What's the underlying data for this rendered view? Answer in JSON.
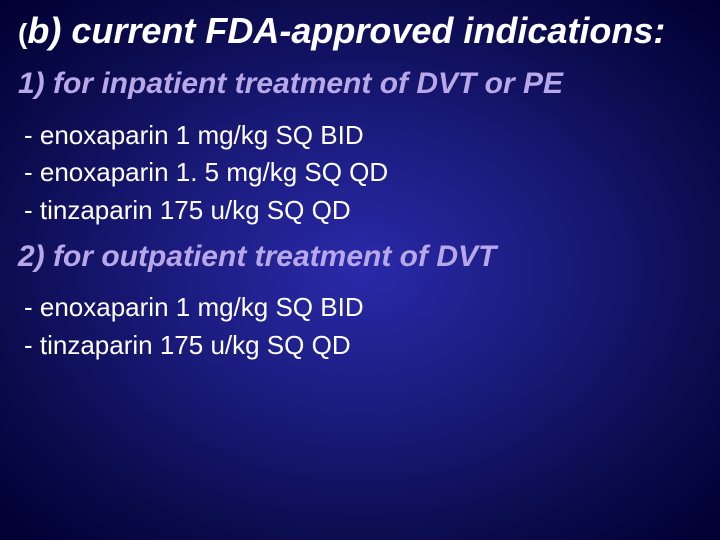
{
  "background": {
    "gradient_center": "#2a2aaa",
    "gradient_mid": "#1a1a7a",
    "gradient_outer": "#0a0a4a",
    "gradient_edge": "#000033"
  },
  "title": {
    "paren": "(",
    "label_part1": "b)",
    "label_part2": " current FDA-approved indications:",
    "color": "#ffffff",
    "fontsize": 36,
    "font_style": "bold italic"
  },
  "sections": [
    {
      "heading": "1) for inpatient treatment of DVT or PE",
      "heading_color": "#b8a8e8",
      "heading_fontsize": 30,
      "items": [
        "- enoxaparin 1 mg/kg SQ BID",
        "- enoxaparin 1. 5 mg/kg SQ QD",
        "- tinzaparin 175 u/kg SQ QD"
      ],
      "item_color": "#ffffff",
      "item_fontsize": 26
    },
    {
      "heading": "2) for outpatient treatment of DVT",
      "heading_color": "#b8a8e8",
      "heading_fontsize": 30,
      "items": [
        "- enoxaparin 1 mg/kg SQ BID",
        "- tinzaparin 175 u/kg SQ QD"
      ],
      "item_color": "#ffffff",
      "item_fontsize": 26
    }
  ]
}
